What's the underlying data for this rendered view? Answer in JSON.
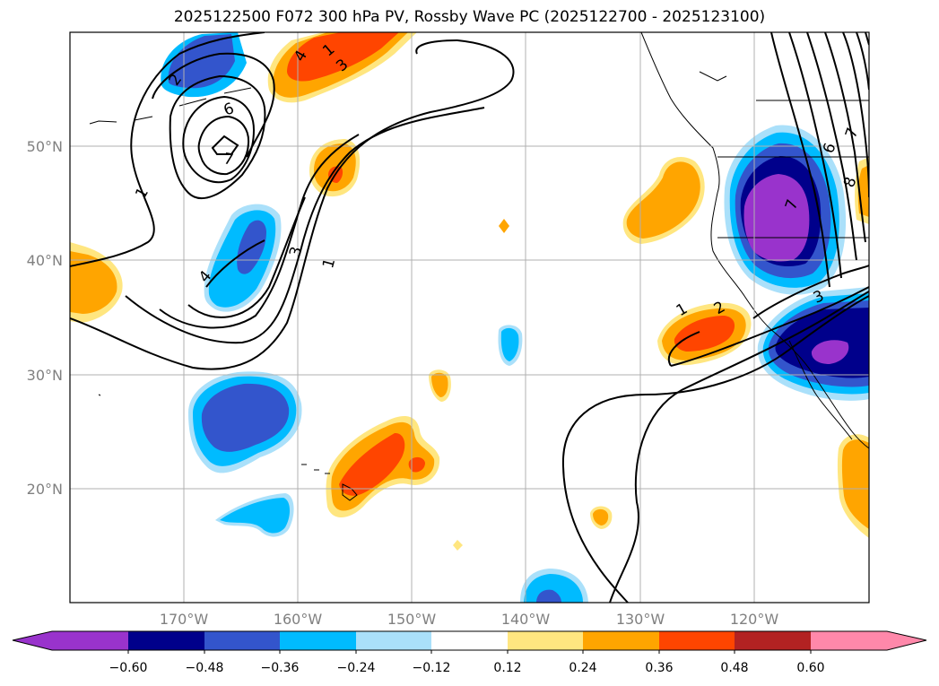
{
  "title": "2025122500 F072 300 hPa PV, Rossby Wave PC (2025122700 - 2025123100)",
  "map": {
    "lat_labels": [
      "50°N",
      "40°N",
      "30°N",
      "20°N"
    ],
    "lon_labels": [
      "170°W",
      "160°W",
      "150°W",
      "140°W",
      "130°W",
      "120°W"
    ],
    "contour_labels": [
      "1",
      "2",
      "3",
      "4",
      "6",
      "7",
      "1",
      "3",
      "1",
      "1",
      "2",
      "3",
      "6",
      "7",
      "8",
      "4",
      "7"
    ]
  },
  "colorbar": {
    "ticks": [
      "−0.60",
      "−0.48",
      "−0.36",
      "−0.24",
      "−0.12",
      "0.12",
      "0.24",
      "0.36",
      "0.48",
      "0.60"
    ],
    "colors": [
      "#9933cc",
      "#00008b",
      "#3355cc",
      "#00bbff",
      "#aae0fa",
      "#ffffff",
      "#ffe680",
      "#ffa500",
      "#ff4500",
      "#b22222",
      "#ff88aa"
    ]
  }
}
